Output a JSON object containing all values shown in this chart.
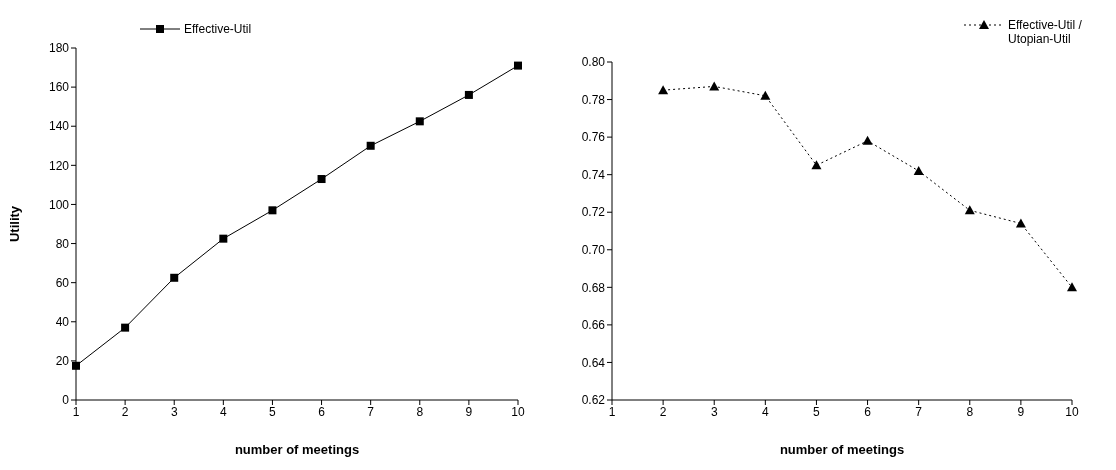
{
  "chart_data": [
    {
      "type": "line",
      "xlabel": "number of meetings",
      "ylabel": "Utility",
      "categories": [
        "1",
        "2",
        "3",
        "4",
        "5",
        "6",
        "7",
        "8",
        "9",
        "10"
      ],
      "series": [
        {
          "name": "Effective-Util",
          "color": "#000000",
          "values": [
            17.5,
            37,
            62.5,
            82.5,
            97,
            113,
            130,
            142.5,
            156,
            171
          ]
        }
      ],
      "ylim": [
        0,
        180
      ],
      "yticks": [
        0,
        20,
        40,
        60,
        80,
        100,
        120,
        140,
        160,
        180
      ],
      "grid": false,
      "legend": "top left",
      "marker": "square",
      "line_style": "solid"
    },
    {
      "type": "line",
      "xlabel": "number of meetings",
      "categories": [
        "1",
        "2",
        "3",
        "4",
        "5",
        "6",
        "7",
        "8",
        "9",
        "10"
      ],
      "series": [
        {
          "name": "Effective-Util / Utopian-Util",
          "color": "#000000",
          "values": [
            null,
            0.785,
            0.787,
            0.782,
            0.745,
            0.758,
            0.742,
            0.721,
            0.714,
            0.68
          ]
        }
      ],
      "ylim": [
        0.62,
        0.8
      ],
      "yticks": [
        {
          "value": 0.62,
          "label": "0.62"
        },
        {
          "value": 0.64,
          "label": "0.64"
        },
        {
          "value": 0.66,
          "label": "0.66"
        },
        {
          "value": 0.68,
          "label": "0.68"
        },
        {
          "value": 0.7,
          "label": "0.70"
        },
        {
          "value": 0.72,
          "label": "0.72"
        },
        {
          "value": 0.74,
          "label": "0.74"
        },
        {
          "value": 0.76,
          "label": "0.76"
        },
        {
          "value": 0.78,
          "label": "0.78"
        },
        {
          "value": 0.8,
          "label": "0.80"
        }
      ],
      "grid": false,
      "legend": "top right",
      "marker": "triangle",
      "line_style": "dotted"
    }
  ]
}
